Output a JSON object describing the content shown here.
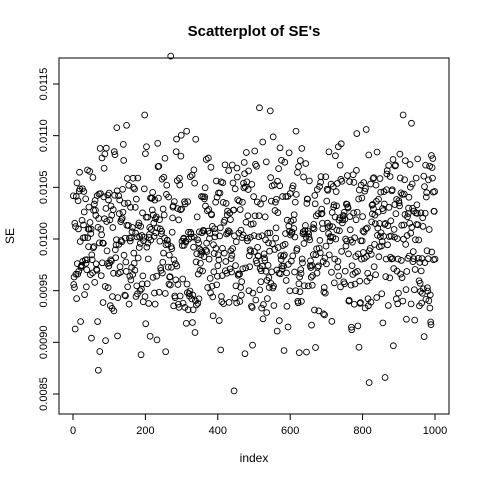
{
  "chart_data": {
    "type": "scatter",
    "title": "Scatterplot of SE's",
    "xlabel": "index",
    "ylabel": "SE",
    "xlim": [
      0,
      1000
    ],
    "ylim": [
      0.0085,
      0.0118
    ],
    "xticks": [
      0,
      200,
      400,
      600,
      800,
      1000
    ],
    "xtick_labels": [
      "0",
      "200",
      "400",
      "600",
      "800",
      "1000"
    ],
    "yticks": [
      0.0085,
      0.009,
      0.0095,
      0.01,
      0.0105,
      0.011,
      0.0115
    ],
    "ytick_labels": [
      "0.0085",
      "0.0090",
      "0.0095",
      "0.0100",
      "0.0105",
      "0.0110",
      "0.0115"
    ],
    "grid": false,
    "legend": "none",
    "marker": "open-circle",
    "n_points": 1000,
    "y_center": 0.01,
    "y_spread": 0.00045,
    "notable_points": [
      {
        "x": 270,
        "y": 0.01177
      },
      {
        "x": 515,
        "y": 0.01127
      },
      {
        "x": 545,
        "y": 0.01124
      },
      {
        "x": 198,
        "y": 0.0112
      },
      {
        "x": 912,
        "y": 0.0112
      },
      {
        "x": 935,
        "y": 0.01112
      },
      {
        "x": 148,
        "y": 0.0111
      },
      {
        "x": 445,
        "y": 0.00853
      },
      {
        "x": 862,
        "y": 0.00866
      },
      {
        "x": 818,
        "y": 0.00861
      },
      {
        "x": 70,
        "y": 0.00873
      },
      {
        "x": 188,
        "y": 0.00888
      },
      {
        "x": 475,
        "y": 0.00889
      },
      {
        "x": 625,
        "y": 0.0089
      },
      {
        "x": 670,
        "y": 0.00895
      }
    ]
  }
}
